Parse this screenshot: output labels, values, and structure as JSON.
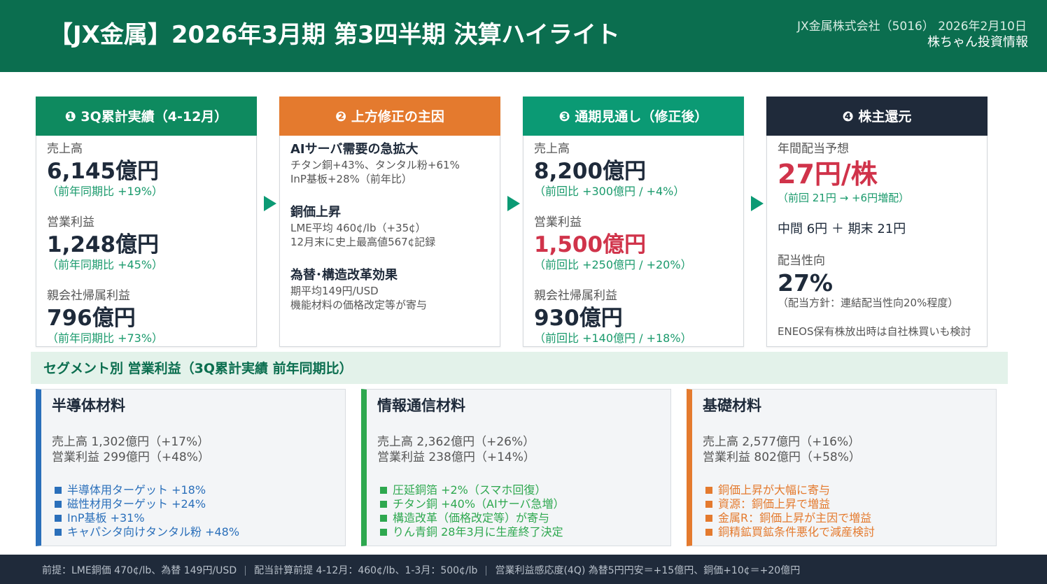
{
  "header": {
    "title": "【JX金属】2026年3月期 第3四半期 決算ハイライト",
    "company": "JX金属株式会社（5016） 2026年2月10日",
    "source": "株ちゃん投資情報"
  },
  "cards": [
    {
      "marker": "❶",
      "title": "3Q累計実績（4-12月）",
      "color": "#0e8a5f",
      "metrics": [
        {
          "label": "売上高",
          "value": "6,145億円",
          "change": "（前年同期比 +19%）"
        },
        {
          "label": "営業利益",
          "value": "1,248億円",
          "change": "（前年同期比 +45%）"
        },
        {
          "label": "親会社帰属利益",
          "value": "796億円",
          "change": "（前年同期比 +73%）"
        }
      ]
    },
    {
      "marker": "❷",
      "title": "上方修正の主因",
      "color": "#e47a2e",
      "drivers": [
        {
          "heading": "AIサーバ需要の急拡大",
          "lines": [
            "チタン銅+43%、タンタル粉+61%",
            "InP基板+28%（前年比）"
          ]
        },
        {
          "heading": "銅価上昇",
          "lines": [
            "LME平均 460¢/lb（+35¢）",
            "12月末に史上最高値567¢記録"
          ]
        },
        {
          "heading": "為替･構造改革効果",
          "lines": [
            "期平均149円/USD",
            "機能材料の価格改定等が寄与"
          ]
        }
      ]
    },
    {
      "marker": "❸",
      "title": "通期見通し（修正後）",
      "color": "#0b9a74",
      "metrics": [
        {
          "label": "売上高",
          "value": "8,200億円",
          "change": "（前回比 +300億円 / +4%）"
        },
        {
          "label": "営業利益",
          "value": "1,500億円",
          "change": "（前回比 +250億円 / +20%）",
          "value_color": "#d0334a"
        },
        {
          "label": "親会社帰属利益",
          "value": "930億円",
          "change": "（前回比 +140億円 / +18%）"
        }
      ]
    },
    {
      "marker": "❹",
      "title": "株主還元",
      "color": "#1f2a3a",
      "dividend": {
        "label": "年間配当予想",
        "value": "27円/株",
        "change": "（前回 21円 → +6円増配）",
        "value_color": "#d0334a"
      },
      "split": "中間 6円 ＋ 期末 21円",
      "payout": {
        "label": "配当性向",
        "value": "27%",
        "policy": "（配当方針：連結配当性向20%程度）"
      },
      "note": "ENEOS保有株放出時は自社株買いも検討"
    }
  ],
  "segment_section": {
    "title": "セグメント別 営業利益（3Q累計実績 前年同期比）",
    "segments": [
      {
        "name": "半導体材料",
        "color": "#2a6fba",
        "sales": "売上高 1,302億円（+17%）",
        "profit": "営業利益 299億円（+48%）",
        "points": [
          "半導体用ターゲット +18%",
          "磁性材用ターゲット +24%",
          "InP基板 +31%",
          "キャパシタ向けタンタル粉 +48%"
        ]
      },
      {
        "name": "情報通信材料",
        "color": "#2ea84f",
        "sales": "売上高 2,362億円（+26%）",
        "profit": "営業利益 238億円（+14%）",
        "points": [
          "圧延銅箔 +2%（スマホ回復）",
          "チタン銅 +40%（AIサーバ急増）",
          "構造改革（価格改定等）が寄与",
          "りん青銅 28年3月に生産終了決定"
        ]
      },
      {
        "name": "基礎材料",
        "color": "#e47a2e",
        "sales": "売上高 2,577億円（+16%）",
        "profit": "営業利益 802億円（+58%）",
        "points": [
          "銅価上昇が大幅に寄与",
          "資源：銅価上昇で増益",
          "金属R：銅価上昇が主因で増益",
          "銅精鉱買鉱条件悪化で減産検討"
        ]
      }
    ]
  },
  "footer": [
    "前提：LME銅価 470¢/lb、為替 149円/USD",
    "配当計算前提 4-12月：460¢/lb、1-3月：500¢/lb",
    "営業利益感応度(4Q) 為替5円円安＝+15億円、銅価+10¢＝+20億円"
  ]
}
